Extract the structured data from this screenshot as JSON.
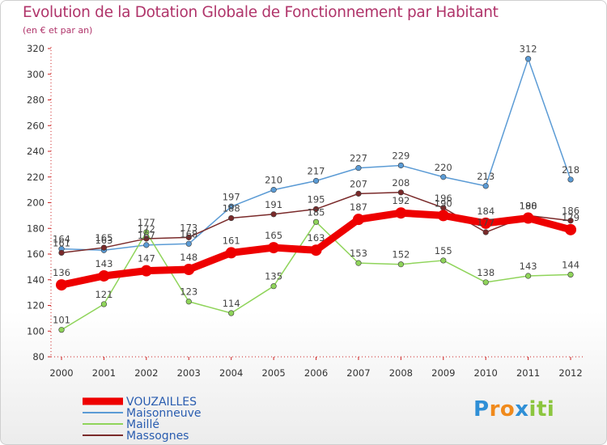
{
  "chart_data": {
    "type": "line",
    "title": "Evolution de la Dotation Globale de Fonctionnement par Habitant",
    "subtitle": "(en € et par an)",
    "x": [
      "2000",
      "2001",
      "2002",
      "2003",
      "2004",
      "2005",
      "2006",
      "2007",
      "2008",
      "2009",
      "2010",
      "2011",
      "2012"
    ],
    "ylim": [
      80,
      320
    ],
    "yticks": [
      80,
      100,
      120,
      140,
      160,
      180,
      200,
      220,
      240,
      260,
      280,
      300,
      320
    ],
    "grid": false,
    "legend_position": "bottom-left",
    "series": [
      {
        "name": "Maisonneuve",
        "color": "#5b9bd5",
        "values": [
          164,
          163,
          167,
          168,
          197,
          210,
          217,
          227,
          229,
          220,
          213,
          312,
          218
        ]
      },
      {
        "name": "Maillé",
        "color": "#8fd45a",
        "values": [
          101,
          121,
          177,
          123,
          114,
          135,
          185,
          153,
          152,
          155,
          138,
          143,
          144
        ]
      },
      {
        "name": "Massognes",
        "color": "#7a2a2a",
        "values": [
          161,
          165,
          172,
          173,
          188,
          191,
          195,
          207,
          208,
          196,
          177,
          190,
          186
        ]
      },
      {
        "name": "VOUZAILLES",
        "color": "#ee0000",
        "values": [
          136,
          143,
          147,
          148,
          161,
          165,
          163,
          187,
          192,
          190,
          184,
          188,
          179
        ]
      }
    ],
    "legend_order": [
      "VOUZAILLES",
      "Maisonneuve",
      "Maillé",
      "Massognes"
    ]
  },
  "logo": {
    "letters": [
      "P",
      "r",
      "o",
      "x",
      "i",
      "t",
      "i"
    ],
    "colors": [
      "#2f8fd6",
      "#f08a1c",
      "#f08a1c",
      "#2f8fd6",
      "#8cc63f",
      "#8cc63f",
      "#8cc63f"
    ]
  }
}
